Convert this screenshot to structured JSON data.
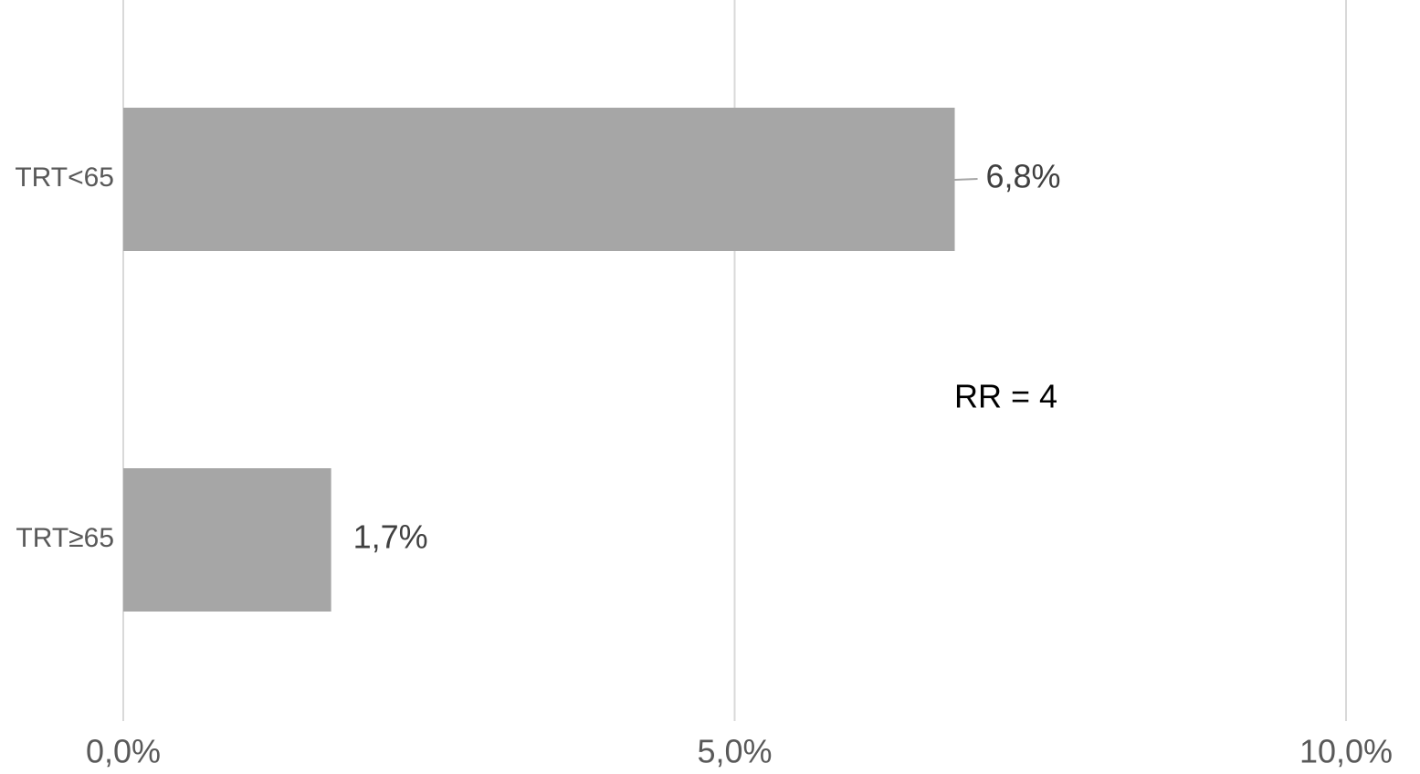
{
  "chart_data": {
    "type": "bar",
    "orientation": "horizontal",
    "categories": [
      "TRT<65",
      "TRT≥65"
    ],
    "values": [
      6.8,
      1.7
    ],
    "value_labels": [
      "6,8%",
      "1,7%"
    ],
    "color": "#a6a6a6",
    "xlim": [
      0,
      10
    ],
    "xticks": [
      {
        "value": 0,
        "label": "0,0%"
      },
      {
        "value": 5,
        "label": "5,0%"
      },
      {
        "value": 10,
        "label": "10,0%"
      }
    ],
    "grid": true,
    "annotation": "RR = 4"
  }
}
